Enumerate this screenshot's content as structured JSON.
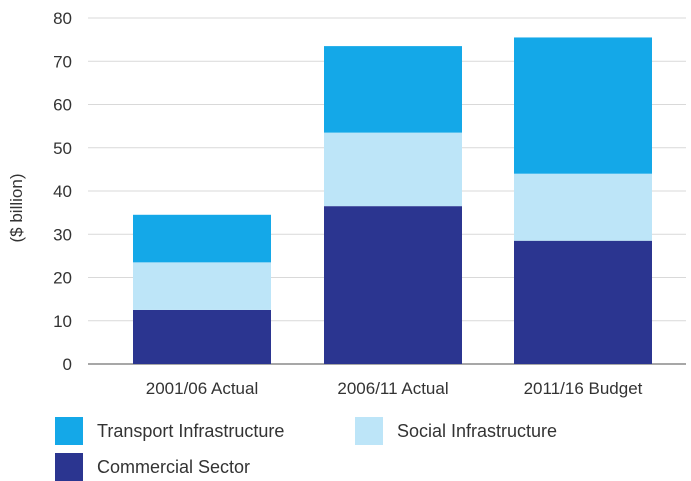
{
  "chart_data": {
    "type": "bar",
    "stacked": true,
    "categories": [
      "2001/06 Actual",
      "2006/11 Actual",
      "2011/16  Budget"
    ],
    "series": [
      {
        "name": "Commercial Sector",
        "values": [
          12.5,
          36.5,
          28.5
        ],
        "color": "#2b3590"
      },
      {
        "name": "Social Infrastructure",
        "values": [
          11,
          17,
          15.5
        ],
        "color": "#bde5f8"
      },
      {
        "name": "Transport Infrastructure",
        "values": [
          11,
          20,
          31.5
        ],
        "color": "#14a8e8"
      }
    ],
    "ylabel": "($ billion)",
    "ylim": [
      0,
      80
    ],
    "yticks": [
      0,
      10,
      20,
      30,
      40,
      50,
      60,
      70,
      80
    ],
    "grid": true,
    "legend_position": "bottom",
    "legend_order": [
      "Transport Infrastructure",
      "Social Infrastructure",
      "Commercial Sector"
    ]
  }
}
